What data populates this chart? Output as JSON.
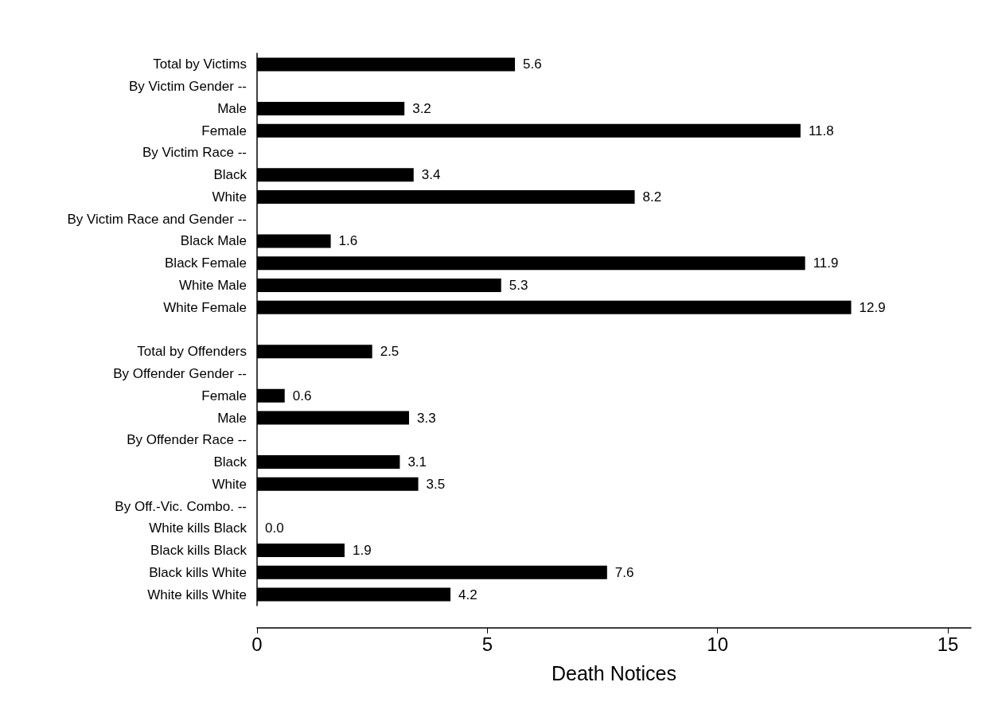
{
  "chart_data": {
    "type": "bar",
    "orientation": "horizontal",
    "xlabel": "Death Notices",
    "categories": [
      "Total by Victims",
      "By Victim Gender --",
      "Male",
      "Female",
      "By Victim Race --",
      "Black",
      "White",
      "By Victim Race and Gender --",
      "Black Male",
      "Black Female",
      "White Male",
      "White Female",
      null,
      "Total by Offenders",
      "By Offender Gender --",
      "Female",
      "Male",
      "By Offender Race --",
      "Black",
      "White",
      "By Off.-Vic. Combo. --",
      "White kills Black",
      "Black kills Black",
      "Black kills White",
      "White kills White"
    ],
    "values": [
      5.6,
      null,
      3.2,
      11.8,
      null,
      3.4,
      8.2,
      null,
      1.6,
      11.9,
      5.3,
      12.9,
      null,
      2.5,
      null,
      0.6,
      3.3,
      null,
      3.1,
      3.5,
      null,
      0.0,
      1.9,
      7.6,
      4.2
    ],
    "value_labels": [
      "5.6",
      null,
      "3.2",
      "11.8",
      null,
      "3.4",
      "8.2",
      null,
      "1.6",
      "11.9",
      "5.3",
      "12.9",
      null,
      "2.5",
      null,
      "0.6",
      "3.3",
      null,
      "3.1",
      "3.5",
      null,
      "0.0",
      "1.9",
      "7.6",
      "4.2"
    ],
    "color": "#000000",
    "xlim": [
      0,
      15.5
    ],
    "xticks": [
      0,
      5,
      10,
      15
    ],
    "grid": false
  }
}
